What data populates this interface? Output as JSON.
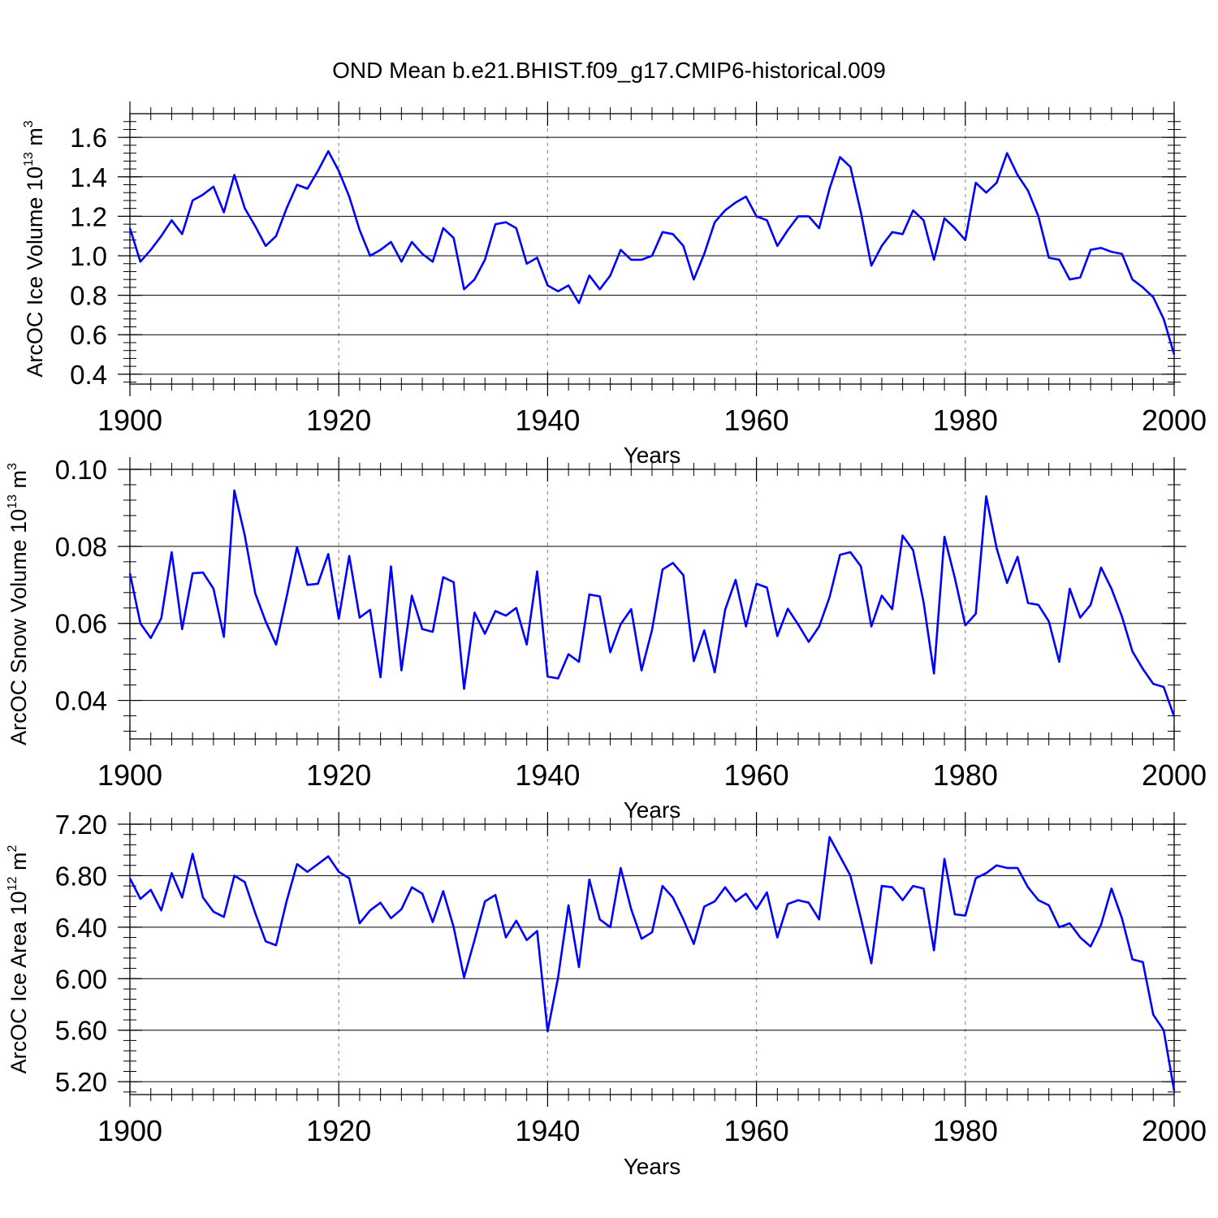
{
  "title": "OND Mean b.e21.BHIST.f09_g17.CMIP6-historical.009",
  "colors": {
    "line": "#0000ff",
    "axis": "#000000",
    "grid": "#999999"
  },
  "chart_data": [
    {
      "type": "line",
      "name": "ice-volume",
      "ylabel": "ArcOC Ice Volume 10",
      "ylabel_exponent": "13",
      "ylabel_unit": " m",
      "ylabel_unit_exponent": "3",
      "xlabel": "Years",
      "xlim": [
        1900,
        2000
      ],
      "ylim": [
        0.35,
        1.72
      ],
      "xticks": [
        1900,
        1920,
        1940,
        1960,
        1980,
        2000
      ],
      "xtick_labels": [
        "1900",
        "1920",
        "1940",
        "1960",
        "1980",
        "2000"
      ],
      "yticks": [
        0.4,
        0.6,
        0.8,
        1.0,
        1.2,
        1.4,
        1.6
      ],
      "ytick_labels": [
        "0.4",
        "0.6",
        "0.8",
        "1.0",
        "1.2",
        "1.4",
        "1.6"
      ],
      "yminor_step": 0.04,
      "x_start": 1900,
      "values": [
        1.14,
        0.97,
        1.03,
        1.1,
        1.18,
        1.11,
        1.28,
        1.31,
        1.35,
        1.22,
        1.41,
        1.24,
        1.15,
        1.05,
        1.1,
        1.24,
        1.36,
        1.34,
        1.43,
        1.53,
        1.43,
        1.3,
        1.13,
        1.0,
        1.03,
        1.07,
        0.97,
        1.07,
        1.01,
        0.97,
        1.14,
        1.09,
        0.83,
        0.88,
        0.98,
        1.16,
        1.17,
        1.14,
        0.96,
        0.99,
        0.85,
        0.82,
        0.85,
        0.76,
        0.9,
        0.83,
        0.9,
        1.03,
        0.98,
        0.98,
        1.0,
        1.12,
        1.11,
        1.05,
        0.88,
        1.01,
        1.17,
        1.23,
        1.27,
        1.3,
        1.2,
        1.18,
        1.05,
        1.13,
        1.2,
        1.2,
        1.14,
        1.34,
        1.5,
        1.45,
        1.22,
        0.95,
        1.05,
        1.12,
        1.11,
        1.23,
        1.18,
        0.98,
        1.19,
        1.14,
        1.08,
        1.37,
        1.32,
        1.37,
        1.52,
        1.41,
        1.33,
        1.2,
        0.99,
        0.98,
        0.88,
        0.89,
        1.03,
        1.04,
        1.02,
        1.01,
        0.88,
        0.84,
        0.79,
        0.68,
        0.5
      ]
    },
    {
      "type": "line",
      "name": "snow-volume",
      "ylabel": "ArcOC Snow Volume 10",
      "ylabel_exponent": "13",
      "ylabel_unit": " m",
      "ylabel_unit_exponent": "3",
      "xlabel": "Years",
      "xlim": [
        1900,
        2000
      ],
      "ylim": [
        0.03,
        0.1
      ],
      "xticks": [
        1900,
        1920,
        1940,
        1960,
        1980,
        2000
      ],
      "xtick_labels": [
        "1900",
        "1920",
        "1940",
        "1960",
        "1980",
        "2000"
      ],
      "yticks": [
        0.04,
        0.06,
        0.08,
        0.1
      ],
      "ytick_labels": [
        "0.04",
        "0.06",
        "0.08",
        "0.10"
      ],
      "yminor_step": 0.004,
      "x_start": 1900,
      "values": [
        0.073,
        0.06,
        0.0562,
        0.0613,
        0.0785,
        0.0585,
        0.073,
        0.0732,
        0.069,
        0.0565,
        0.0945,
        0.0828,
        0.0678,
        0.0605,
        0.0545,
        0.0668,
        0.0798,
        0.07,
        0.0703,
        0.078,
        0.0612,
        0.0775,
        0.0615,
        0.0635,
        0.046,
        0.0748,
        0.0478,
        0.0672,
        0.0585,
        0.0578,
        0.072,
        0.0707,
        0.043,
        0.0628,
        0.0573,
        0.0632,
        0.062,
        0.064,
        0.0545,
        0.0735,
        0.0462,
        0.0457,
        0.052,
        0.05,
        0.0675,
        0.067,
        0.0525,
        0.0598,
        0.0637,
        0.0478,
        0.0583,
        0.074,
        0.0757,
        0.0725,
        0.0502,
        0.0582,
        0.0473,
        0.0635,
        0.0713,
        0.0592,
        0.0703,
        0.0693,
        0.0567,
        0.0638,
        0.0597,
        0.0552,
        0.0592,
        0.0668,
        0.0778,
        0.0785,
        0.0748,
        0.0592,
        0.0672,
        0.0637,
        0.0828,
        0.079,
        0.0655,
        0.047,
        0.0825,
        0.0718,
        0.0595,
        0.0625,
        0.093,
        0.0795,
        0.0705,
        0.0773,
        0.0653,
        0.0648,
        0.0605,
        0.05,
        0.069,
        0.0615,
        0.0648,
        0.0745,
        0.069,
        0.0618,
        0.0527,
        0.0482,
        0.0443,
        0.0435,
        0.0358
      ]
    },
    {
      "type": "line",
      "name": "ice-area",
      "ylabel": "ArcOC Ice Area 10",
      "ylabel_exponent": "12",
      "ylabel_unit": " m",
      "ylabel_unit_exponent": "2",
      "xlabel": "Years",
      "xlim": [
        1900,
        2000
      ],
      "ylim": [
        5.1,
        7.2
      ],
      "xticks": [
        1900,
        1920,
        1940,
        1960,
        1980,
        2000
      ],
      "xtick_labels": [
        "1900",
        "1920",
        "1940",
        "1960",
        "1980",
        "2000"
      ],
      "yticks": [
        5.2,
        5.6,
        6.0,
        6.4,
        6.8,
        7.2
      ],
      "ytick_labels": [
        "5.20",
        "5.60",
        "6.00",
        "6.40",
        "6.80",
        "7.20"
      ],
      "yminor_step": 0.08,
      "x_start": 1900,
      "values": [
        6.78,
        6.62,
        6.69,
        6.53,
        6.82,
        6.63,
        6.97,
        6.63,
        6.52,
        6.48,
        6.8,
        6.75,
        6.51,
        6.29,
        6.26,
        6.6,
        6.89,
        6.83,
        6.89,
        6.95,
        6.83,
        6.78,
        6.43,
        6.53,
        6.59,
        6.47,
        6.54,
        6.71,
        6.66,
        6.44,
        6.68,
        6.4,
        6.01,
        6.3,
        6.6,
        6.65,
        6.32,
        6.45,
        6.3,
        6.37,
        5.59,
        6.01,
        6.57,
        6.09,
        6.77,
        6.46,
        6.4,
        6.86,
        6.54,
        6.31,
        6.36,
        6.72,
        6.63,
        6.46,
        6.27,
        6.56,
        6.6,
        6.71,
        6.6,
        6.66,
        6.54,
        6.67,
        6.32,
        6.58,
        6.61,
        6.59,
        6.46,
        7.1,
        6.95,
        6.8,
        6.47,
        6.12,
        6.72,
        6.71,
        6.61,
        6.72,
        6.7,
        6.22,
        6.93,
        6.5,
        6.49,
        6.78,
        6.82,
        6.88,
        6.86,
        6.86,
        6.71,
        6.61,
        6.57,
        6.4,
        6.43,
        6.32,
        6.25,
        6.42,
        6.7,
        6.47,
        6.15,
        6.13,
        5.72,
        5.6,
        5.13
      ]
    }
  ]
}
